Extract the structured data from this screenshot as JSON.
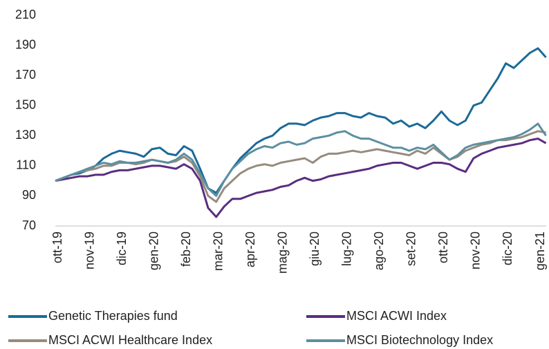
{
  "chart_data": {
    "type": "line",
    "categories": [
      "ott-19",
      null,
      null,
      null,
      "nov-19",
      null,
      null,
      null,
      "dic-19",
      null,
      null,
      null,
      "gen-20",
      null,
      null,
      null,
      "feb-20",
      null,
      null,
      null,
      "mar-20",
      null,
      null,
      null,
      "apr-20",
      null,
      null,
      null,
      "mag-20",
      null,
      null,
      null,
      "giu-20",
      null,
      null,
      null,
      "lug-20",
      null,
      null,
      null,
      "ago-20",
      null,
      null,
      null,
      "set-20",
      null,
      null,
      null,
      "ott-20",
      null,
      null,
      null,
      "nov-20",
      null,
      null,
      null,
      "dic-20",
      null,
      null,
      null,
      "gen-21",
      null
    ],
    "series": [
      {
        "name": "Genetic Therapies fund",
        "color": "#1b6a97",
        "values": [
          100,
          102,
          104,
          105,
          107,
          110,
          115,
          118,
          120,
          119,
          118,
          116,
          121,
          122,
          118,
          117,
          123,
          120,
          108,
          95,
          92,
          100,
          108,
          115,
          120,
          125,
          128,
          130,
          135,
          138,
          138,
          137,
          140,
          142,
          143,
          145,
          145,
          143,
          142,
          145,
          143,
          142,
          138,
          140,
          136,
          138,
          135,
          140,
          146,
          140,
          137,
          140,
          150,
          152,
          160,
          168,
          178,
          175,
          180,
          185,
          188,
          182
        ]
      },
      {
        "name": "MSCI ACWI Index",
        "color": "#5a2d7f",
        "values": [
          100,
          101,
          102,
          103,
          103,
          104,
          104,
          106,
          107,
          107,
          108,
          109,
          110,
          110,
          109,
          108,
          111,
          108,
          100,
          82,
          76,
          83,
          88,
          88,
          90,
          92,
          93,
          94,
          96,
          97,
          100,
          102,
          100,
          101,
          103,
          104,
          105,
          106,
          107,
          108,
          110,
          111,
          112,
          112,
          110,
          108,
          110,
          112,
          112,
          111,
          108,
          106,
          115,
          118,
          120,
          122,
          123,
          124,
          125,
          127,
          128,
          125
        ]
      },
      {
        "name": "MSCI ACWI Healthcare Index",
        "color": "#968b7e",
        "values": [
          100,
          102,
          104,
          106,
          107,
          108,
          110,
          110,
          112,
          112,
          111,
          112,
          114,
          113,
          112,
          113,
          116,
          112,
          103,
          90,
          86,
          95,
          100,
          105,
          108,
          110,
          111,
          110,
          112,
          113,
          114,
          115,
          112,
          116,
          118,
          118,
          119,
          120,
          119,
          120,
          121,
          120,
          119,
          118,
          117,
          120,
          118,
          122,
          118,
          114,
          116,
          120,
          122,
          124,
          125,
          127,
          127,
          128,
          129,
          131,
          133,
          132
        ]
      },
      {
        "name": "MSCI Biotechnology Index",
        "color": "#5c8fa1",
        "values": [
          100,
          102,
          104,
          106,
          108,
          110,
          112,
          111,
          113,
          112,
          112,
          113,
          114,
          113,
          112,
          114,
          118,
          114,
          105,
          95,
          90,
          100,
          108,
          113,
          118,
          121,
          123,
          122,
          125,
          126,
          124,
          125,
          128,
          129,
          130,
          132,
          133,
          130,
          128,
          128,
          126,
          124,
          122,
          122,
          120,
          122,
          121,
          124,
          119,
          114,
          117,
          122,
          124,
          125,
          126,
          127,
          128,
          129,
          131,
          134,
          138,
          130
        ]
      }
    ],
    "ylim": [
      70,
      210
    ],
    "yticks": [
      70,
      90,
      110,
      130,
      150,
      170,
      190,
      210
    ],
    "grid": false,
    "legend": "bottom"
  }
}
